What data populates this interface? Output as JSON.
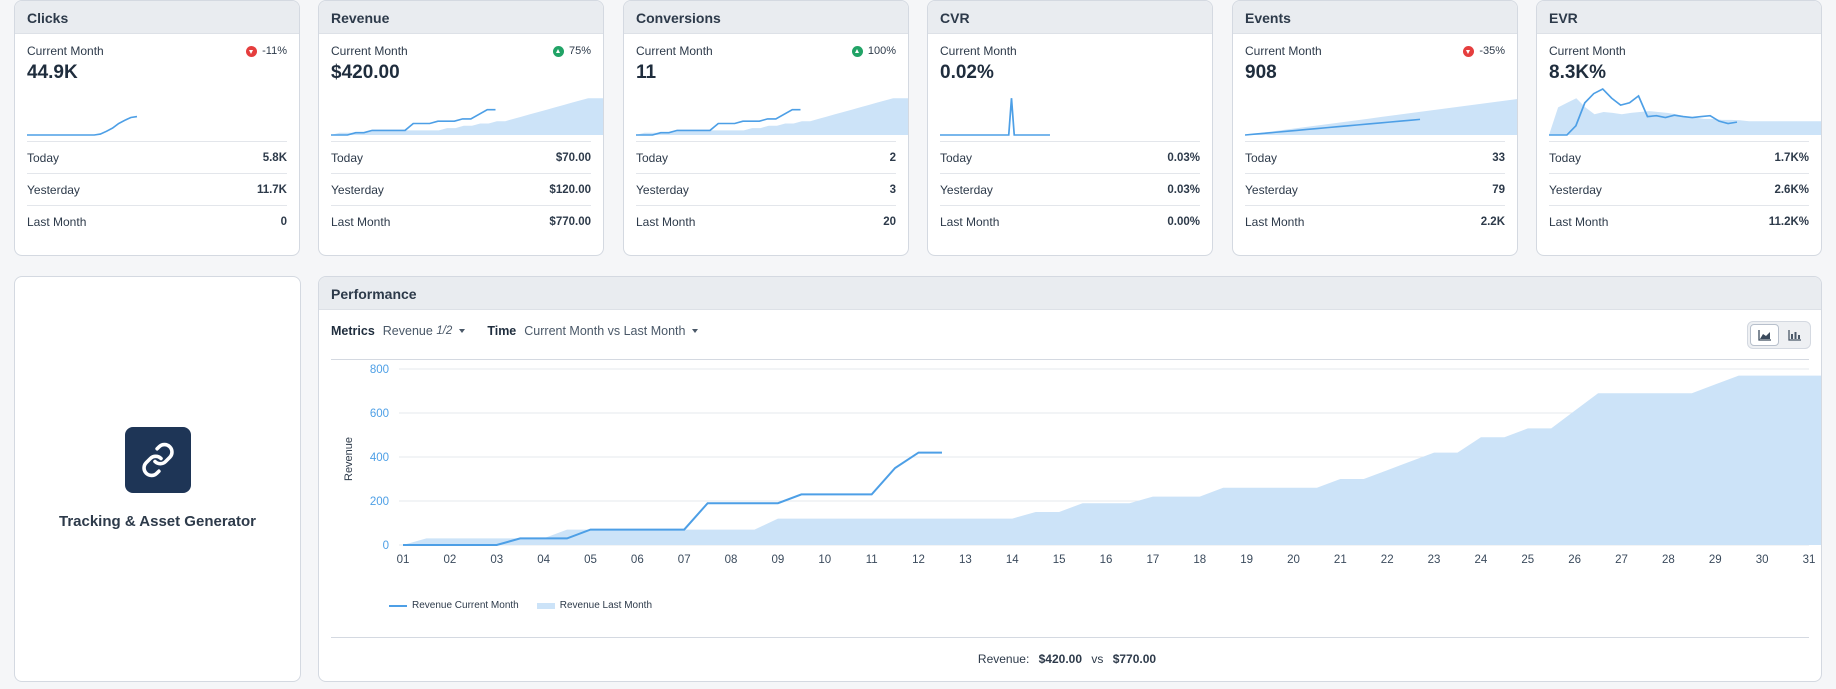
{
  "kpis": [
    {
      "title": "Clicks",
      "period": "Current Month",
      "value": "44.9K",
      "change": "-11%",
      "dir": "down",
      "today": "5.8K",
      "yesterday": "11.7K",
      "last_month": "0",
      "area": [],
      "line": [
        0,
        0,
        0,
        0,
        0,
        0,
        0,
        0,
        0,
        0,
        0,
        0,
        2,
        8,
        15,
        25,
        32,
        38,
        40
      ]
    },
    {
      "title": "Revenue",
      "period": "Current Month",
      "value": "$420.00",
      "change": "75%",
      "dir": "up",
      "today": "$70.00",
      "yesterday": "$120.00",
      "last_month": "$770.00",
      "area": [
        0,
        5,
        5,
        5,
        5,
        10,
        10,
        10,
        10,
        10,
        10,
        10,
        10,
        10,
        15,
        15,
        20,
        20,
        25,
        25,
        30,
        30,
        35,
        40,
        45,
        50,
        55,
        60,
        65,
        70,
        75,
        80,
        80,
        80,
        80
      ],
      "line": [
        0,
        0,
        0,
        5,
        5,
        10,
        10,
        10,
        10,
        10,
        25,
        25,
        25,
        30,
        30,
        30,
        35,
        35,
        45,
        55,
        55
      ]
    },
    {
      "title": "Conversions",
      "period": "Current Month",
      "value": "11",
      "change": "100%",
      "dir": "up",
      "today": "2",
      "yesterday": "3",
      "last_month": "20",
      "area": [
        0,
        5,
        5,
        5,
        5,
        10,
        10,
        10,
        10,
        10,
        10,
        10,
        10,
        10,
        15,
        15,
        20,
        20,
        25,
        25,
        30,
        30,
        35,
        40,
        45,
        50,
        55,
        60,
        65,
        70,
        75,
        80,
        80,
        80,
        80
      ],
      "line": [
        0,
        0,
        0,
        5,
        5,
        10,
        10,
        10,
        10,
        10,
        25,
        25,
        25,
        30,
        30,
        30,
        35,
        35,
        45,
        55,
        55
      ]
    },
    {
      "title": "CVR",
      "period": "Current Month",
      "value": "0.02%",
      "change": "",
      "dir": "",
      "today": "0.03%",
      "yesterday": "0.03%",
      "last_month": "0.00%",
      "area": [],
      "line": [
        0,
        0,
        0,
        0,
        0,
        0,
        0,
        0,
        0,
        0,
        0,
        0,
        0,
        0,
        0,
        0,
        0,
        0,
        0,
        0,
        0,
        0,
        0,
        0,
        0,
        0,
        80,
        0,
        0,
        0,
        0,
        0,
        0,
        0,
        0,
        0,
        0,
        0,
        0,
        0,
        0
      ]
    },
    {
      "title": "Events",
      "period": "Current Month",
      "value": "908",
      "change": "-35%",
      "dir": "down",
      "today": "33",
      "yesterday": "79",
      "last_month": "2.2K",
      "area": [
        0,
        3,
        6,
        9,
        12,
        15,
        18,
        21,
        24,
        27,
        30,
        33,
        36,
        39,
        42,
        45,
        48,
        51,
        54,
        57,
        60,
        63,
        66,
        69,
        72,
        75,
        78,
        81
      ],
      "line": [
        0,
        2,
        4,
        6,
        8,
        10,
        12,
        14,
        16,
        18,
        20,
        22,
        24,
        26,
        28,
        30,
        32,
        34
      ]
    },
    {
      "title": "EVR",
      "period": "Current Month",
      "value": "8.3K%",
      "change": "",
      "dir": "",
      "today": "1.7K%",
      "yesterday": "2.6K%",
      "last_month": "11.2K%",
      "area": [
        0,
        60,
        70,
        80,
        60,
        45,
        50,
        48,
        45,
        48,
        50,
        52,
        50,
        48,
        45,
        40,
        38,
        35,
        35,
        33,
        33,
        32,
        30,
        30,
        30,
        30,
        30,
        30,
        30,
        30,
        30,
        30
      ],
      "line": [
        0,
        0,
        0,
        20,
        70,
        90,
        100,
        80,
        65,
        70,
        85,
        40,
        42,
        38,
        43,
        40,
        38,
        40,
        42,
        30,
        25,
        28
      ]
    }
  ],
  "tracker": {
    "label": "Tracking & Asset Generator"
  },
  "performance": {
    "title": "Performance",
    "metrics_label": "Metrics",
    "metrics_value": "Revenue",
    "metrics_count": "1/2",
    "time_label": "Time",
    "time_value": "Current Month vs Last Month",
    "summary_label": "Revenue:",
    "summary_current": "$420.00",
    "summary_vs": "vs",
    "summary_last": "$770.00"
  },
  "chart_data": {
    "type": "area",
    "ylabel": "Revenue",
    "xlabel": "",
    "ylim": [
      0,
      800
    ],
    "yticks": [
      0,
      200,
      400,
      600,
      800
    ],
    "categories": [
      "01",
      "02",
      "03",
      "04",
      "05",
      "06",
      "07",
      "08",
      "09",
      "10",
      "11",
      "12",
      "13",
      "14",
      "15",
      "16",
      "17",
      "18",
      "19",
      "20",
      "21",
      "22",
      "23",
      "24",
      "25",
      "26",
      "27",
      "28",
      "29",
      "30",
      "31"
    ],
    "series": [
      {
        "name": "Revenue Current Month",
        "kind": "line",
        "color": "#4d9fe6",
        "x": [
          1,
          2,
          3,
          3.5,
          4,
          4.5,
          5,
          6,
          7,
          7.5,
          8,
          9,
          9.5,
          10,
          11,
          11.5,
          12,
          12.5
        ],
        "y": [
          0,
          0,
          0,
          30,
          30,
          30,
          70,
          70,
          70,
          190,
          190,
          190,
          230,
          230,
          230,
          350,
          420,
          420
        ]
      },
      {
        "name": "Revenue Last Month",
        "kind": "area",
        "color": "#cce3f8",
        "x": [
          1,
          1.5,
          2,
          3,
          3.5,
          4,
          4.5,
          5,
          6,
          7,
          7.5,
          8,
          8.5,
          9,
          10,
          11,
          12,
          13,
          13.5,
          14,
          14.5,
          15,
          15.5,
          16,
          16.5,
          17,
          17.5,
          18,
          18.5,
          19,
          20,
          20.5,
          21,
          21.5,
          22,
          22.5,
          23,
          23.5,
          24,
          24.5,
          25,
          25.5,
          26,
          26.5,
          27,
          28,
          28.5,
          29,
          29.5,
          30,
          31,
          31.5
        ],
        "y": [
          0,
          30,
          30,
          30,
          30,
          30,
          70,
          70,
          70,
          70,
          70,
          70,
          70,
          120,
          120,
          120,
          120,
          120,
          120,
          120,
          150,
          150,
          190,
          190,
          190,
          220,
          220,
          220,
          260,
          260,
          260,
          260,
          300,
          300,
          340,
          380,
          420,
          420,
          490,
          490,
          530,
          530,
          610,
          690,
          690,
          690,
          690,
          730,
          770,
          770,
          770,
          770
        ]
      }
    ]
  }
}
